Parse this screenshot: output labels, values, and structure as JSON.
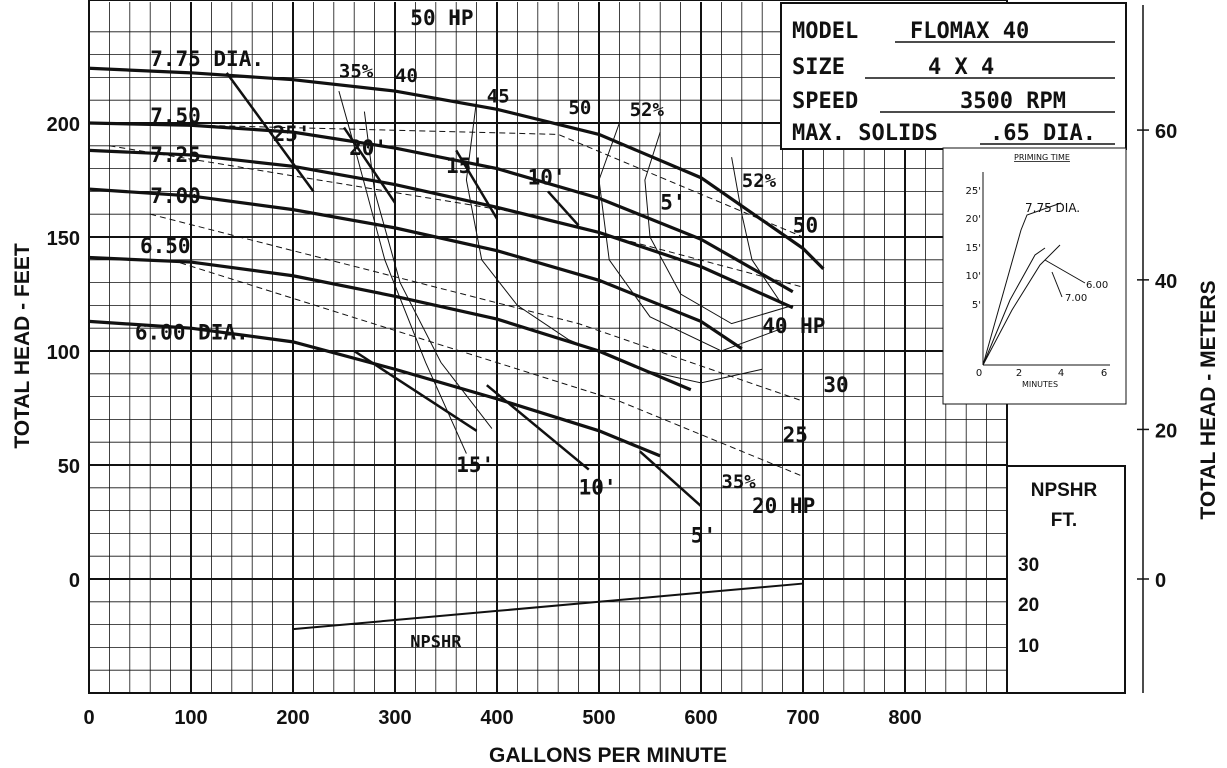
{
  "chart_data": {
    "type": "line",
    "xlabel": "GALLONS PER MINUTE",
    "ylabel": "TOTAL HEAD - FEET",
    "ylabel_right": "TOTAL HEAD - METERS",
    "xlim": [
      0,
      800
    ],
    "ylim": [
      0,
      230
    ],
    "grid": true,
    "x_ticks": [
      "0",
      "100",
      "200",
      "300",
      "400",
      "500",
      "600",
      "700",
      "800"
    ],
    "y_ticks": [
      {
        "value": 0,
        "label": "0"
      },
      {
        "value": 50,
        "label": "50"
      },
      {
        "value": 100,
        "label": "100"
      },
      {
        "value": 150,
        "label": "150"
      },
      {
        "value": 200,
        "label": "200"
      }
    ],
    "right_ticks": [
      {
        "feet": 0,
        "label": "0"
      },
      {
        "feet": 65.6,
        "label": "20"
      },
      {
        "feet": 131.2,
        "label": "40"
      },
      {
        "feet": 196.9,
        "label": "60"
      }
    ],
    "info_box": {
      "model_label": "MODEL",
      "model_value": "FLOMAX 40",
      "size_label": "SIZE",
      "size_value": "4 X 4",
      "speed_label": "SPEED",
      "speed_value": "3500 RPM",
      "solids_label": "MAX. SOLIDS",
      "solids_value": ".65 DIA."
    },
    "series": [
      {
        "name": "7.75 DIA.",
        "x": [
          0,
          100,
          200,
          300,
          400,
          500,
          600,
          700,
          720
        ],
        "y": [
          224,
          222,
          219,
          214,
          206,
          195,
          176,
          145,
          136
        ]
      },
      {
        "name": "7.50",
        "x": [
          0,
          100,
          200,
          300,
          400,
          500,
          600,
          690
        ],
        "y": [
          200,
          199,
          196,
          189,
          180,
          167,
          149,
          126
        ]
      },
      {
        "name": "7.25",
        "x": [
          0,
          100,
          200,
          300,
          400,
          500,
          600,
          690
        ],
        "y": [
          188,
          186,
          181,
          173,
          163,
          152,
          137,
          119
        ]
      },
      {
        "name": "7.00",
        "x": [
          0,
          100,
          200,
          300,
          400,
          500,
          600,
          640
        ],
        "y": [
          171,
          168,
          162,
          154,
          144,
          131,
          113,
          101
        ]
      },
      {
        "name": "6.50",
        "x": [
          0,
          100,
          200,
          300,
          400,
          500,
          590
        ],
        "y": [
          141,
          139,
          133,
          124,
          114,
          100,
          83
        ]
      },
      {
        "name": "6.00 DIA.",
        "x": [
          0,
          100,
          200,
          300,
          400,
          500,
          560
        ],
        "y": [
          113,
          110,
          104,
          92,
          79,
          65,
          54
        ]
      },
      {
        "name": "NPSHR",
        "x": [
          200,
          300,
          400,
          500,
          600,
          700
        ],
        "y": [
          -22,
          -18,
          -14,
          -10,
          -6,
          -2
        ]
      }
    ],
    "npshr_curve_scale": "NPSHR FT. 30 / 20 / 10 at head 0 / -17 / -33",
    "labels": {
      "d775": "7.75 DIA.",
      "d750": "7.50",
      "d725": "7.25",
      "d700": "7.00",
      "d650": "6.50",
      "d600": "6.00 DIA.",
      "hp50": "50 HP",
      "hp50b": "50",
      "hp40": "40 HP",
      "hp30": "30",
      "hp25": "25",
      "hp20": "20 HP",
      "e35top": "35%",
      "e40": "40",
      "e45": "45",
      "e50": "50",
      "e52a": "52%",
      "e52b": "52%",
      "e35bot": "35%",
      "n25": "25'",
      "n20": "20'",
      "n15a": "15'",
      "n10a": "10'",
      "n5a": "5'",
      "n15b": "15'",
      "n10b": "10'",
      "n5b": "5'",
      "npshr_curve": "NPSHR",
      "npshr_title": "NPSHR",
      "npshr_unit": "FT.",
      "npshr_30": "30",
      "npshr_20": "20",
      "npshr_10": "10"
    },
    "inset": {
      "title": "PRIMING TIME",
      "xlabel": "MINUTES",
      "x_ticks": [
        "0",
        "2",
        "4",
        "6"
      ],
      "y_ticks": [
        "5'",
        "10'",
        "15'",
        "20'",
        "25'"
      ],
      "curve_labels": [
        "7.75 DIA.",
        "6.00",
        "7.00"
      ]
    }
  }
}
